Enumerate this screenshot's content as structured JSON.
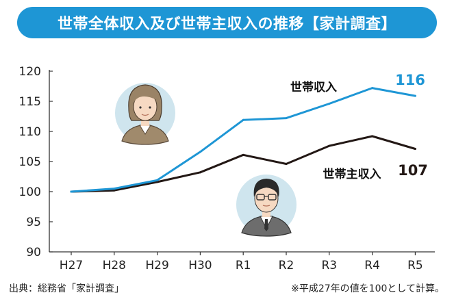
{
  "title": "世帯全体収入及び世帯主収入の推移【家計調査】",
  "source": "出典：総務省「家計調査」",
  "note": "※平成27年の値を100として計算。",
  "colors": {
    "banner": "#1e96d5",
    "household": "#1e96d5",
    "head": "#231815",
    "axis": "#333333"
  },
  "chart_data": {
    "type": "line",
    "title": "世帯全体収入及び世帯主収入の推移【家計調査】",
    "xlabel": "",
    "ylabel": "",
    "categories": [
      "H27",
      "H28",
      "H29",
      "H30",
      "R1",
      "R2",
      "R3",
      "R4",
      "R5"
    ],
    "ylim": [
      90,
      120
    ],
    "yticks": [
      90,
      95,
      100,
      105,
      110,
      115,
      120
    ],
    "grid": false,
    "series": [
      {
        "name": "世帯収入",
        "end_label": "116",
        "values": [
          100,
          100.5,
          101.9,
          106.6,
          111.9,
          112.2,
          114.6,
          117.2,
          115.9
        ]
      },
      {
        "name": "世帯主収入",
        "end_label": "107",
        "values": [
          100,
          100.2,
          101.6,
          103.2,
          106.1,
          104.6,
          107.6,
          109.2,
          107.1
        ]
      }
    ]
  }
}
